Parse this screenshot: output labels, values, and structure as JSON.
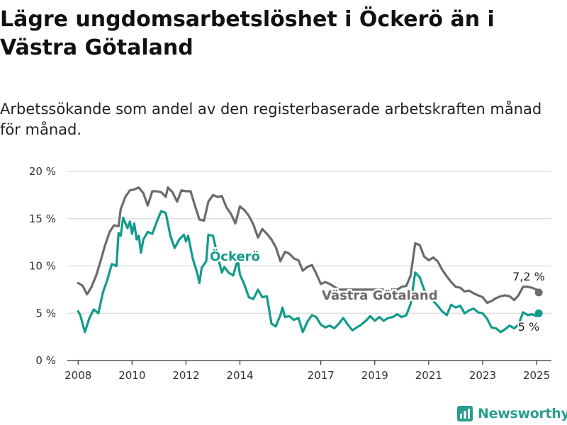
{
  "header": {
    "title": "Lägre ungdomsarbetslöshet i Öckerö än i Västra Götaland",
    "subtitle": "Arbetssökande som andel av den registerbaserade arbetskraften månad för månad."
  },
  "brand": {
    "name": "Newsworthy"
  },
  "colors": {
    "ockero": "#119b8b",
    "vastra": "#6b6b6b",
    "grid": "#dcdcdc",
    "axis": "#333333"
  },
  "chart_data": {
    "type": "line",
    "ylim": [
      0,
      20
    ],
    "y_ticks": [
      {
        "value": 0,
        "label": "0 %"
      },
      {
        "value": 5,
        "label": "5 %"
      },
      {
        "value": 10,
        "label": "10 %"
      },
      {
        "value": 15,
        "label": "15 %"
      },
      {
        "value": 20,
        "label": "20 %"
      }
    ],
    "x_ticks": [
      {
        "value": 2008,
        "label": "2008"
      },
      {
        "value": 2010,
        "label": "2010"
      },
      {
        "value": 2012,
        "label": "2012"
      },
      {
        "value": 2014,
        "label": "2014"
      },
      {
        "value": 2017,
        "label": "2017"
      },
      {
        "value": 2019,
        "label": "2019"
      },
      {
        "value": 2021,
        "label": "2021"
      },
      {
        "value": 2023,
        "label": "2023"
      },
      {
        "value": 2025,
        "label": "2025"
      }
    ],
    "grid": true,
    "series": [
      {
        "name": "Västra Götaland",
        "end_label": "7,2 %",
        "points": [
          [
            2008.0,
            8.2
          ],
          [
            2008.17,
            7.9
          ],
          [
            2008.33,
            7.0
          ],
          [
            2008.5,
            7.8
          ],
          [
            2008.67,
            9.0
          ],
          [
            2008.83,
            10.5
          ],
          [
            2009.0,
            12.2
          ],
          [
            2009.17,
            13.6
          ],
          [
            2009.33,
            14.3
          ],
          [
            2009.5,
            14.2
          ],
          [
            2009.58,
            16.0
          ],
          [
            2009.75,
            17.3
          ],
          [
            2009.92,
            18.0
          ],
          [
            2010.08,
            18.1
          ],
          [
            2010.25,
            18.3
          ],
          [
            2010.42,
            17.7
          ],
          [
            2010.58,
            16.4
          ],
          [
            2010.75,
            17.9
          ],
          [
            2010.92,
            17.9
          ],
          [
            2011.08,
            17.8
          ],
          [
            2011.25,
            17.3
          ],
          [
            2011.33,
            18.3
          ],
          [
            2011.5,
            17.8
          ],
          [
            2011.67,
            16.8
          ],
          [
            2011.83,
            18.0
          ],
          [
            2012.0,
            17.9
          ],
          [
            2012.17,
            17.9
          ],
          [
            2012.33,
            16.4
          ],
          [
            2012.5,
            14.9
          ],
          [
            2012.67,
            14.8
          ],
          [
            2012.83,
            16.8
          ],
          [
            2013.0,
            17.5
          ],
          [
            2013.17,
            17.3
          ],
          [
            2013.33,
            17.4
          ],
          [
            2013.5,
            16.2
          ],
          [
            2013.67,
            15.5
          ],
          [
            2013.83,
            14.5
          ],
          [
            2014.0,
            16.3
          ],
          [
            2014.17,
            15.9
          ],
          [
            2014.33,
            15.3
          ],
          [
            2014.5,
            14.4
          ],
          [
            2014.67,
            13.0
          ],
          [
            2014.83,
            13.9
          ],
          [
            2015.0,
            13.4
          ],
          [
            2015.17,
            12.8
          ],
          [
            2015.33,
            12.0
          ],
          [
            2015.5,
            10.5
          ],
          [
            2015.67,
            11.5
          ],
          [
            2015.83,
            11.3
          ],
          [
            2016.0,
            10.8
          ],
          [
            2016.17,
            10.6
          ],
          [
            2016.33,
            9.5
          ],
          [
            2016.5,
            9.9
          ],
          [
            2016.67,
            10.1
          ],
          [
            2016.83,
            9.2
          ],
          [
            2017.0,
            8.1
          ],
          [
            2017.17,
            8.3
          ],
          [
            2017.33,
            8.1
          ],
          [
            2017.5,
            7.8
          ],
          [
            2017.67,
            7.5
          ],
          [
            2019.83,
            7.5
          ],
          [
            2020.0,
            7.8
          ],
          [
            2020.17,
            7.9
          ],
          [
            2020.33,
            9.0
          ],
          [
            2020.5,
            12.4
          ],
          [
            2020.67,
            12.2
          ],
          [
            2020.83,
            11.0
          ],
          [
            2021.0,
            10.6
          ],
          [
            2021.17,
            10.9
          ],
          [
            2021.33,
            10.5
          ],
          [
            2021.5,
            9.6
          ],
          [
            2021.67,
            8.9
          ],
          [
            2021.83,
            8.3
          ],
          [
            2022.0,
            7.8
          ],
          [
            2022.17,
            7.7
          ],
          [
            2022.33,
            7.3
          ],
          [
            2022.5,
            7.4
          ],
          [
            2022.67,
            7.1
          ],
          [
            2022.83,
            6.9
          ],
          [
            2023.0,
            6.7
          ],
          [
            2023.17,
            6.1
          ],
          [
            2023.33,
            6.3
          ],
          [
            2023.5,
            6.6
          ],
          [
            2023.67,
            6.8
          ],
          [
            2023.83,
            6.9
          ],
          [
            2024.0,
            6.8
          ],
          [
            2024.17,
            6.4
          ],
          [
            2024.33,
            6.9
          ],
          [
            2024.5,
            7.8
          ],
          [
            2024.67,
            7.8
          ],
          [
            2024.83,
            7.7
          ],
          [
            2025.0,
            7.5
          ],
          [
            2025.08,
            7.2
          ]
        ]
      },
      {
        "name": "Öckerö",
        "end_label": "5 %",
        "points": [
          [
            2008.0,
            5.2
          ],
          [
            2008.08,
            4.8
          ],
          [
            2008.25,
            3.0
          ],
          [
            2008.42,
            4.5
          ],
          [
            2008.58,
            5.4
          ],
          [
            2008.75,
            5.0
          ],
          [
            2008.92,
            7.2
          ],
          [
            2009.08,
            8.5
          ],
          [
            2009.25,
            10.2
          ],
          [
            2009.42,
            10.0
          ],
          [
            2009.5,
            13.5
          ],
          [
            2009.58,
            13.2
          ],
          [
            2009.67,
            15.1
          ],
          [
            2009.83,
            14.0
          ],
          [
            2009.92,
            14.7
          ],
          [
            2010.0,
            13.4
          ],
          [
            2010.08,
            14.5
          ],
          [
            2010.17,
            12.8
          ],
          [
            2010.25,
            13.2
          ],
          [
            2010.33,
            11.4
          ],
          [
            2010.42,
            12.8
          ],
          [
            2010.58,
            13.6
          ],
          [
            2010.75,
            13.4
          ],
          [
            2010.92,
            14.7
          ],
          [
            2011.08,
            15.8
          ],
          [
            2011.25,
            15.6
          ],
          [
            2011.42,
            13.2
          ],
          [
            2011.58,
            11.9
          ],
          [
            2011.75,
            12.8
          ],
          [
            2011.92,
            13.3
          ],
          [
            2012.0,
            12.6
          ],
          [
            2012.08,
            13.2
          ],
          [
            2012.25,
            10.8
          ],
          [
            2012.42,
            9.2
          ],
          [
            2012.5,
            8.2
          ],
          [
            2012.58,
            9.8
          ],
          [
            2012.75,
            10.5
          ],
          [
            2012.83,
            13.3
          ],
          [
            2013.0,
            13.2
          ],
          [
            2013.17,
            11.1
          ],
          [
            2013.33,
            9.3
          ],
          [
            2013.42,
            9.9
          ],
          [
            2013.58,
            9.3
          ],
          [
            2013.75,
            9.0
          ],
          [
            2013.92,
            10.7
          ],
          [
            2014.0,
            9.1
          ],
          [
            2014.17,
            8.0
          ],
          [
            2014.33,
            6.7
          ],
          [
            2014.5,
            6.5
          ],
          [
            2014.67,
            7.5
          ],
          [
            2014.83,
            6.7
          ],
          [
            2015.0,
            6.8
          ],
          [
            2015.17,
            3.9
          ],
          [
            2015.33,
            3.6
          ],
          [
            2015.5,
            4.8
          ],
          [
            2015.58,
            5.6
          ],
          [
            2015.67,
            4.6
          ],
          [
            2015.83,
            4.7
          ],
          [
            2016.0,
            4.3
          ],
          [
            2016.17,
            4.5
          ],
          [
            2016.33,
            3.0
          ],
          [
            2016.5,
            4.1
          ],
          [
            2016.67,
            4.8
          ],
          [
            2016.83,
            4.6
          ],
          [
            2017.0,
            3.8
          ],
          [
            2017.17,
            3.5
          ],
          [
            2017.33,
            3.7
          ],
          [
            2017.5,
            3.4
          ],
          [
            2017.67,
            3.9
          ],
          [
            2017.83,
            4.5
          ],
          [
            2018.0,
            3.8
          ],
          [
            2018.17,
            3.2
          ],
          [
            2018.33,
            3.5
          ],
          [
            2018.5,
            3.8
          ],
          [
            2018.67,
            4.2
          ],
          [
            2018.83,
            4.7
          ],
          [
            2019.0,
            4.2
          ],
          [
            2019.17,
            4.6
          ],
          [
            2019.33,
            4.2
          ],
          [
            2019.5,
            4.5
          ],
          [
            2019.67,
            4.6
          ],
          [
            2019.83,
            4.9
          ],
          [
            2020.0,
            4.6
          ],
          [
            2020.17,
            4.8
          ],
          [
            2020.33,
            6.0
          ],
          [
            2020.5,
            9.3
          ],
          [
            2020.67,
            8.8
          ],
          [
            2020.83,
            7.5
          ],
          [
            2021.0,
            6.8
          ],
          [
            2021.17,
            6.3
          ],
          [
            2021.33,
            5.8
          ],
          [
            2021.5,
            5.2
          ],
          [
            2021.67,
            4.8
          ],
          [
            2021.83,
            5.9
          ],
          [
            2022.0,
            5.6
          ],
          [
            2022.17,
            5.8
          ],
          [
            2022.33,
            5.0
          ],
          [
            2022.5,
            5.3
          ],
          [
            2022.67,
            5.5
          ],
          [
            2022.83,
            5.1
          ],
          [
            2023.0,
            5.0
          ],
          [
            2023.17,
            4.4
          ],
          [
            2023.33,
            3.5
          ],
          [
            2023.5,
            3.4
          ],
          [
            2023.67,
            3.0
          ],
          [
            2023.83,
            3.3
          ],
          [
            2024.0,
            3.7
          ],
          [
            2024.17,
            3.4
          ],
          [
            2024.33,
            3.8
          ],
          [
            2024.5,
            5.1
          ],
          [
            2024.67,
            4.8
          ],
          [
            2024.83,
            4.9
          ],
          [
            2025.0,
            4.7
          ],
          [
            2025.08,
            5.0
          ]
        ]
      }
    ]
  }
}
